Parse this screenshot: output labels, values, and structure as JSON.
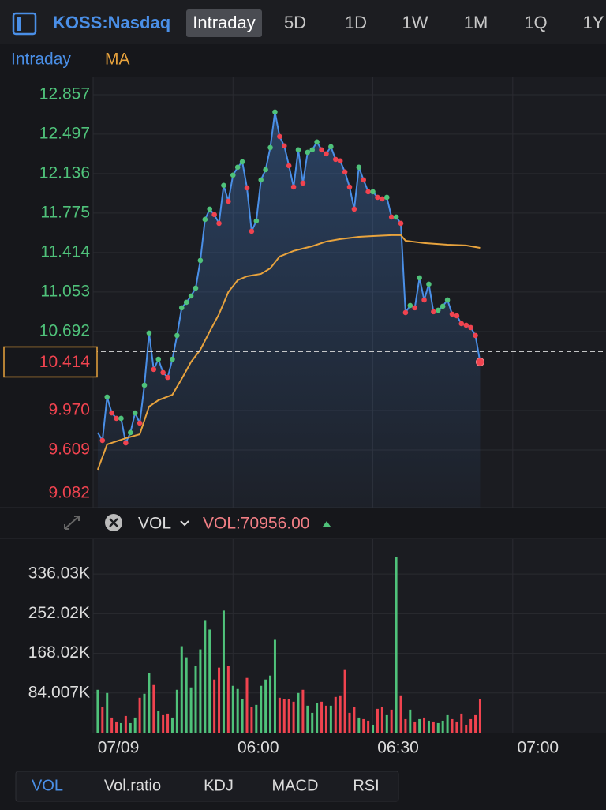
{
  "toolbar": {
    "symbol": "KOSS:Nasdaq",
    "tabs": [
      "Intraday",
      "5D",
      "1D",
      "1W",
      "1M",
      "1Q",
      "1Y"
    ],
    "active_tab": 0
  },
  "chart_data": [
    {
      "type": "line",
      "series": [
        {
          "name": "Intraday",
          "color": "#4a8fe7",
          "x": [
            1,
            2,
            3,
            4,
            5,
            6,
            7,
            8,
            9,
            10,
            11,
            12,
            13,
            14,
            15,
            16,
            17,
            18,
            19,
            20,
            21,
            22,
            23,
            24,
            25,
            26,
            27,
            28,
            29,
            30,
            31,
            32,
            33,
            34,
            35,
            36,
            37,
            38,
            39,
            40,
            41,
            42,
            43,
            44,
            45,
            46,
            47,
            48,
            49,
            50,
            51,
            52,
            53,
            54,
            55,
            56,
            57,
            58,
            59,
            60,
            61,
            62,
            63,
            64,
            65,
            66,
            67,
            68,
            69,
            70,
            71,
            72,
            73,
            74,
            75,
            76,
            77,
            78,
            79,
            80,
            81,
            82,
            83
          ],
          "values": [
            9.768,
            9.696,
            10.093,
            9.948,
            9.898,
            9.898,
            9.674,
            9.768,
            9.948,
            9.855,
            10.201,
            10.678,
            10.346,
            10.439,
            10.317,
            10.273,
            10.439,
            10.656,
            10.909,
            10.959,
            11.017,
            11.089,
            11.342,
            11.717,
            11.811,
            11.761,
            11.681,
            12.028,
            11.883,
            12.122,
            12.194,
            12.244,
            12.006,
            11.609,
            11.703,
            12.078,
            12.172,
            12.374,
            12.699,
            12.475,
            12.389,
            12.208,
            12.013,
            12.353,
            12.049,
            12.331,
            12.353,
            12.425,
            12.353,
            12.317,
            12.382,
            12.266,
            12.252,
            12.151,
            12.013,
            11.811,
            12.194,
            12.078,
            11.97,
            11.97,
            11.919,
            11.905,
            11.919,
            11.739,
            11.739,
            11.681,
            10.865,
            10.93,
            10.909,
            11.183,
            10.981,
            11.125,
            10.873,
            10.887,
            10.923,
            10.981,
            10.851,
            10.836,
            10.764,
            10.75,
            10.728,
            10.656,
            10.414
          ]
        },
        {
          "name": "MA",
          "color": "#e8a33d",
          "x": [
            1,
            3,
            7,
            10,
            12,
            14,
            17,
            19,
            21,
            23,
            25,
            27,
            29,
            31,
            33,
            36,
            38,
            40,
            43,
            47,
            50,
            53,
            57,
            60,
            64,
            66,
            67,
            71,
            76,
            80,
            83
          ],
          "values": [
            9.429,
            9.66,
            9.717,
            9.753,
            10.006,
            10.064,
            10.114,
            10.259,
            10.414,
            10.526,
            10.692,
            10.851,
            11.053,
            11.161,
            11.197,
            11.219,
            11.27,
            11.378,
            11.429,
            11.472,
            11.515,
            11.537,
            11.558,
            11.565,
            11.573,
            11.573,
            11.522,
            11.501,
            11.486,
            11.479,
            11.457
          ]
        }
      ],
      "xlim": [
        0,
        110
      ],
      "xticks": [
        {
          "value": 0,
          "label": "07/09"
        },
        {
          "value": 30,
          "label": "06:00"
        },
        {
          "value": 60,
          "label": "06:30"
        },
        {
          "value": 90,
          "label": "07:00"
        }
      ],
      "ylim": [
        9.082,
        13.023
      ],
      "yticks": [
        12.857,
        12.497,
        12.136,
        11.775,
        11.414,
        11.053,
        10.692,
        {
          "value": 9.97,
          "label": "9.970"
        },
        9.609,
        9.082
      ],
      "last_price": 10.414,
      "previous_close": 10.508,
      "up_color": "#4fc27a",
      "down_color": "#f0434f",
      "grid": true
    },
    {
      "type": "bar",
      "indicator": "VOL",
      "readout": "VOL:70956.00",
      "x": [
        1,
        2,
        3,
        4,
        5,
        6,
        7,
        8,
        9,
        10,
        11,
        12,
        13,
        14,
        15,
        16,
        17,
        18,
        19,
        20,
        21,
        22,
        23,
        24,
        25,
        26,
        27,
        28,
        29,
        30,
        31,
        32,
        33,
        34,
        35,
        36,
        37,
        38,
        39,
        40,
        41,
        42,
        43,
        44,
        45,
        46,
        47,
        48,
        49,
        50,
        51,
        52,
        53,
        54,
        55,
        56,
        57,
        58,
        59,
        60,
        61,
        62,
        63,
        64,
        65,
        66,
        67,
        68,
        69,
        70,
        71,
        72,
        73,
        74,
        75,
        76,
        77,
        78,
        79,
        80,
        81,
        82,
        83
      ],
      "values": [
        90720,
        53760,
        84000,
        31920,
        23520,
        20160,
        35280,
        20160,
        31920,
        73920,
        82320,
        126000,
        100800,
        45360,
        36960,
        40320,
        31920,
        90720,
        183120,
        159600,
        95760,
        141120,
        176400,
        238560,
        218400,
        112560,
        137760,
        258720,
        141120,
        99120,
        92400,
        70560,
        115920,
        53760,
        58800,
        99120,
        112560,
        120960,
        196560,
        73920,
        70560,
        70560,
        65520,
        84000,
        90720,
        57120,
        42000,
        62160,
        65520,
        57120,
        57120,
        75600,
        78960,
        132720,
        42000,
        53760,
        31920,
        28560,
        25200,
        16800,
        50400,
        53760,
        36960,
        48720,
        372960,
        78960,
        28560,
        48720,
        23520,
        28560,
        31920,
        25200,
        23520,
        20160,
        25200,
        36960,
        28560,
        23520,
        40320,
        16800,
        28560,
        36960,
        70956
      ],
      "ylim": [
        0,
        409920
      ],
      "yticks": [
        {
          "value": 84007,
          "label": "84.007K"
        },
        {
          "value": 168020,
          "label": "168.02K"
        },
        {
          "value": 252020,
          "label": "252.02K"
        },
        {
          "value": 336030,
          "label": "336.03K"
        }
      ],
      "grid": true
    }
  ],
  "indicator_tabs": {
    "tabs": [
      "VOL",
      "Vol.ratio",
      "KDJ",
      "MACD",
      "RSI"
    ],
    "active": 0
  }
}
